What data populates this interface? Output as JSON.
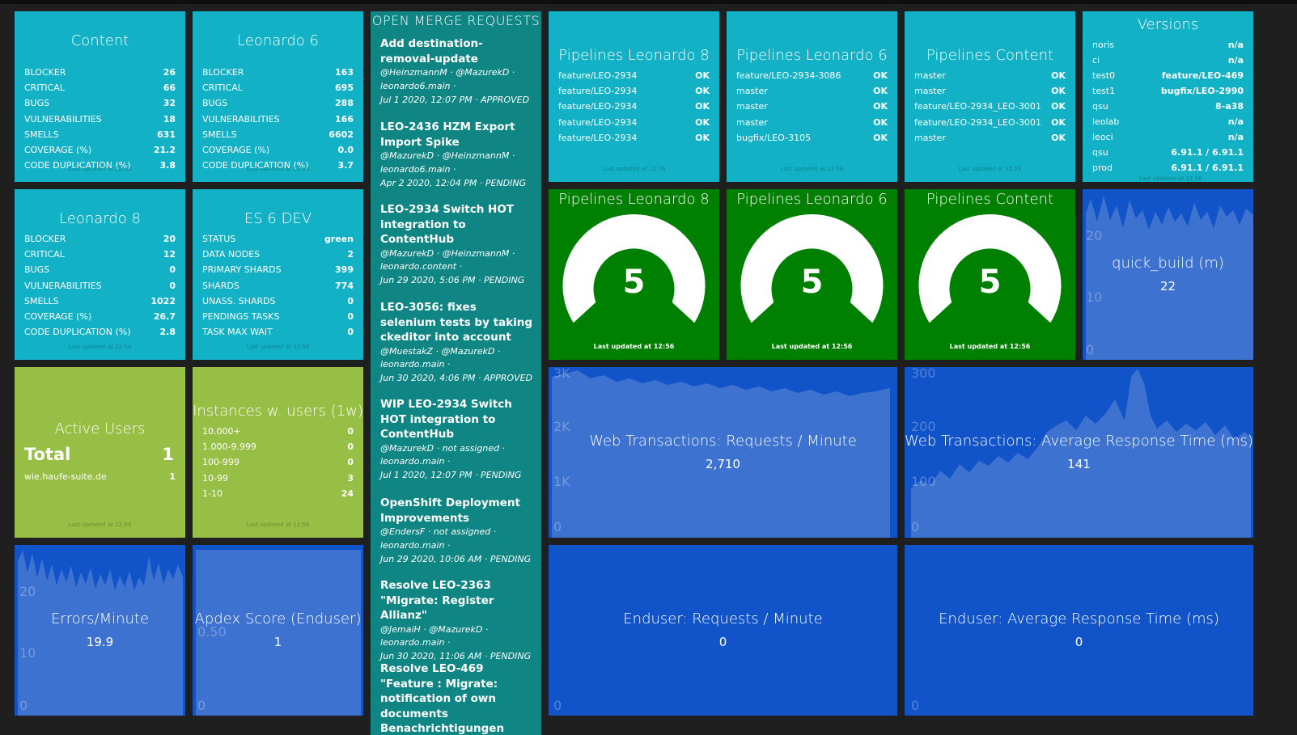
{
  "content": {
    "title": "Content",
    "rows": [
      {
        "label": "BLOCKER",
        "value": "26"
      },
      {
        "label": "CRITICAL",
        "value": "66"
      },
      {
        "label": "BUGS",
        "value": "32"
      },
      {
        "label": "VULNERABILITIES",
        "value": "18"
      },
      {
        "label": "SMELLS",
        "value": "631"
      },
      {
        "label": "COVERAGE (%)",
        "value": "21.2"
      },
      {
        "label": "CODE DUPLICATION (%)",
        "value": "3.8"
      }
    ],
    "updated": "Last updated at 12:54"
  },
  "leonardo6": {
    "title": "Leonardo 6",
    "rows": [
      {
        "label": "BLOCKER",
        "value": "163"
      },
      {
        "label": "CRITICAL",
        "value": "695"
      },
      {
        "label": "BUGS",
        "value": "288"
      },
      {
        "label": "VULNERABILITIES",
        "value": "166"
      },
      {
        "label": "SMELLS",
        "value": "6602"
      },
      {
        "label": "COVERAGE (%)",
        "value": "0.0"
      },
      {
        "label": "CODE DUPLICATION (%)",
        "value": "3.7"
      }
    ],
    "updated": "Last updated at 12:54"
  },
  "leonardo8": {
    "title": "Leonardo 8",
    "rows": [
      {
        "label": "BLOCKER",
        "value": "20"
      },
      {
        "label": "CRITICAL",
        "value": "12"
      },
      {
        "label": "BUGS",
        "value": "0"
      },
      {
        "label": "VULNERABILITIES",
        "value": "0"
      },
      {
        "label": "SMELLS",
        "value": "1022"
      },
      {
        "label": "COVERAGE (%)",
        "value": "26.7"
      },
      {
        "label": "CODE DUPLICATION (%)",
        "value": "2.8"
      }
    ],
    "updated": "Last updated at 12:54"
  },
  "es6dev": {
    "title": "ES 6 DEV",
    "rows": [
      {
        "label": "STATUS",
        "value": "green"
      },
      {
        "label": "DATA NODES",
        "value": "2"
      },
      {
        "label": "PRIMARY SHARDS",
        "value": "399"
      },
      {
        "label": "SHARDS",
        "value": "774"
      },
      {
        "label": "UNASS. SHARDS",
        "value": "0"
      },
      {
        "label": "PENDINGS TASKS",
        "value": "0"
      },
      {
        "label": "TASK MAX WAIT",
        "value": "0"
      }
    ],
    "updated": "Last updated at 12:56"
  },
  "active_users": {
    "title": "Active Users",
    "total_label": "Total",
    "total_value": "1",
    "rows": [
      {
        "label": "wie.haufe-suite.de",
        "value": "1"
      }
    ],
    "updated": "Last updated at 12:56"
  },
  "instances": {
    "title": "Instances w. users (1w)",
    "rows": [
      {
        "label": "10.000+",
        "value": "0"
      },
      {
        "label": "1.000-9.999",
        "value": "0"
      },
      {
        "label": "100-999",
        "value": "0"
      },
      {
        "label": "10-99",
        "value": "3"
      },
      {
        "label": "1-10",
        "value": "24"
      }
    ],
    "updated": "Last updated at 12:56"
  },
  "merge_requests": {
    "title": "OPEN MERGE REQUESTS",
    "items": [
      {
        "name": "Add destination-removal-update",
        "authors": "@HeinzmannM · @MazurekD ·",
        "repo": "leonardo6.main ·",
        "status": "Jul 1 2020, 12:07 PM · APPROVED"
      },
      {
        "name": "LEO-2436 HZM Export Import Spike",
        "authors": "@MazurekD · @HeinzmannM ·",
        "repo": "leonardo6.main ·",
        "status": "Apr 2 2020, 12:04 PM · PENDING"
      },
      {
        "name": "LEO-2934 Switch HOT integration to ContentHub",
        "authors": "@MazurekD · @HeinzmannM ·",
        "repo": "leonardo.content ·",
        "status": "Jun 29 2020, 5:06 PM · PENDING"
      },
      {
        "name": "LEO-3056: fixes selenium tests by taking ckeditor into account",
        "authors": "@MuestakZ · @MazurekD ·",
        "repo": "leonardo.main ·",
        "status": "Jun 30 2020, 4:06 PM · APPROVED"
      },
      {
        "name": "WIP LEO-2934 Switch HOT integration to ContentHub",
        "authors": "@MazurekD · not assigned ·",
        "repo": "leonardo.main ·",
        "status": "Jul 1 2020, 12:07 PM · PENDING"
      },
      {
        "name": "OpenShift Deployment Improvements",
        "authors": "@EndersF · not assigned ·",
        "repo": "leonardo.main ·",
        "status": "Jun 29 2020, 10:06 AM · PENDING"
      },
      {
        "name": "Resolve LEO-2363 \"Migrate: Register Allianz\"",
        "authors": "@JemaiH · @MazurekD ·",
        "repo": "leonardo.main ·",
        "status": "Jun 30 2020, 11:06 AM · PENDING"
      },
      {
        "name": "Resolve LEO-469 \"Feature : Migrate: notification of own documents Benachrichtigungen",
        "authors": "",
        "repo": "",
        "status": ""
      }
    ]
  },
  "pipelines_l8": {
    "title": "Pipelines Leonardo 8",
    "rows": [
      {
        "label": "feature/LEO-2934",
        "value": "OK"
      },
      {
        "label": "feature/LEO-2934",
        "value": "OK"
      },
      {
        "label": "feature/LEO-2934",
        "value": "OK"
      },
      {
        "label": "feature/LEO-2934",
        "value": "OK"
      },
      {
        "label": "feature/LEO-2934",
        "value": "OK"
      }
    ],
    "updated": "Last updated at 12:56"
  },
  "pipelines_l6": {
    "title": "Pipelines Leonardo 6",
    "rows": [
      {
        "label": "feature/LEO-2934-3086",
        "value": "OK"
      },
      {
        "label": "master",
        "value": "OK"
      },
      {
        "label": "master",
        "value": "OK"
      },
      {
        "label": "master",
        "value": "OK"
      },
      {
        "label": "bugfix/LEO-3105",
        "value": "OK"
      }
    ],
    "updated": "Last updated at 12:56"
  },
  "pipelines_content": {
    "title": "Pipelines Content",
    "rows": [
      {
        "label": "master",
        "value": "OK"
      },
      {
        "label": "master",
        "value": "OK"
      },
      {
        "label": "feature/LEO-2934_LEO-3001",
        "value": "OK"
      },
      {
        "label": "feature/LEO-2934_LEO-3001",
        "value": "OK"
      },
      {
        "label": "master",
        "value": "OK"
      }
    ],
    "updated": "Last updated at 12:56"
  },
  "versions": {
    "title": "Versions",
    "rows": [
      {
        "label": "noris",
        "value": "n/a"
      },
      {
        "label": "ci",
        "value": "n/a"
      },
      {
        "label": "test0",
        "value": "feature/LEO-469"
      },
      {
        "label": "test1",
        "value": "bugfix/LEO-2990"
      },
      {
        "label": "qsu",
        "value": "8-a38"
      },
      {
        "label": "leolab",
        "value": "n/a"
      },
      {
        "label": "leoci",
        "value": "n/a"
      },
      {
        "label": "qsu",
        "value": "6.91.1 / 6.91.1"
      },
      {
        "label": "prod",
        "value": "6.91.1 / 6.91.1"
      }
    ],
    "updated": "Last updated at 12:56"
  },
  "gauges": [
    {
      "title": "Pipelines Leonardo 8",
      "value": "5",
      "updated": "Last updated at 12:56"
    },
    {
      "title": "Pipelines Leonardo 6",
      "value": "5",
      "updated": "Last updated at 12:56"
    },
    {
      "title": "Pipelines Content",
      "value": "5",
      "updated": "Last updated at 12:56"
    }
  ],
  "quick_build": {
    "title": "quick_build (m)",
    "value": "22",
    "ticks": [
      "20",
      "10",
      "0"
    ]
  },
  "web_requests": {
    "title": "Web Transactions: Requests / Minute",
    "value": "2,710",
    "ticks": [
      "3K",
      "2K",
      "1K",
      "0"
    ]
  },
  "web_response": {
    "title": "Web Transactions: Average Response Time (ms)",
    "value": "141",
    "ticks": [
      "300",
      "200",
      "100",
      "0"
    ]
  },
  "errors": {
    "title": "Errors/Minute",
    "value": "19.9",
    "ticks": [
      "20",
      "10",
      "0"
    ]
  },
  "apdex": {
    "title": "Apdex Score (Enduser)",
    "value": "1",
    "ticks": [
      "0.50",
      "0"
    ]
  },
  "enduser_requests": {
    "title": "Enduser: Requests / Minute",
    "value": "0",
    "ticks": [
      "0"
    ]
  },
  "enduser_response": {
    "title": "Enduser: Average Response Time (ms)",
    "value": "0",
    "ticks": [
      "0"
    ]
  },
  "colors": {
    "cyan": "#12b1c6",
    "green": "#008000",
    "lime": "#97be45",
    "blue": "#1153c9",
    "teal": "#0f8584"
  }
}
